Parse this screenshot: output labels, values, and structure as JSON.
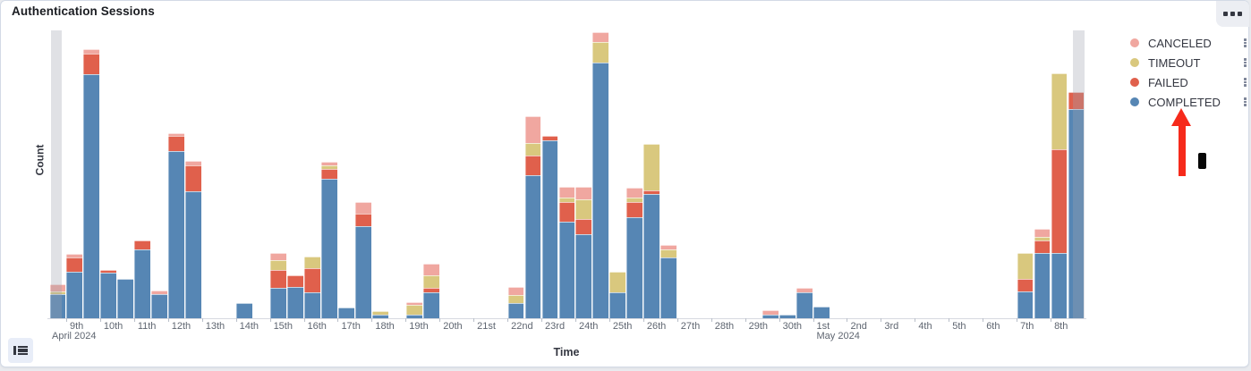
{
  "header": {
    "title": "Authentication Sessions"
  },
  "panel_menu": {
    "icon": "boxes-horizontal-icon"
  },
  "legend_toggle": {
    "icon": "list-icon"
  },
  "axes": {
    "y_title": "Count",
    "x_title": "Time"
  },
  "legend": {
    "position": "right",
    "items": [
      {
        "label": "CANCELED",
        "color": "#f0a7a0"
      },
      {
        "label": "TIMEOUT",
        "color": "#d9c87e"
      },
      {
        "label": "FAILED",
        "color": "#e0604c"
      },
      {
        "label": "COMPLETED",
        "color": "#5686b4"
      }
    ]
  },
  "annotations": {
    "arrow": {
      "shape": "up-arrow",
      "color": "#f62a1b",
      "points_at": "COMPLETED legend item"
    },
    "cursor_mark": {
      "shape": "vertical-bar",
      "color": "#070707"
    }
  },
  "chart_data": {
    "type": "bar",
    "stacked": true,
    "title": "Authentication Sessions",
    "xlabel": "Time",
    "ylabel": "Count",
    "grid": false,
    "legend_position": "right",
    "time_bucket": "12h",
    "x_start": "2024-04-08 12:00",
    "x_end": "2024-05-09 00:00",
    "ylim": [
      0,
      322
    ],
    "y_tick_labels": [],
    "day_tick_labels": [
      "9th",
      "10th",
      "11th",
      "12th",
      "13th",
      "14th",
      "15th",
      "16th",
      "17th",
      "18th",
      "19th",
      "20th",
      "21st",
      "22nd",
      "23rd",
      "24th",
      "25th",
      "26th",
      "27th",
      "28th",
      "29th",
      "30th",
      "1st",
      "2nd",
      "3rd",
      "4th",
      "5th",
      "6th",
      "7th",
      "8th"
    ],
    "month_labels": [
      {
        "text": "April 2024",
        "day_index": 0
      },
      {
        "text": "May 2024",
        "day_index": 22
      }
    ],
    "buckets": [
      "Apr 8 PM",
      "Apr 9 AM",
      "Apr 9 PM",
      "Apr 10 AM",
      "Apr 10 PM",
      "Apr 11 AM",
      "Apr 11 PM",
      "Apr 12 AM",
      "Apr 12 PM",
      "Apr 13 AM",
      "Apr 13 PM",
      "Apr 14 AM",
      "Apr 14 PM",
      "Apr 15 AM",
      "Apr 15 PM",
      "Apr 16 AM",
      "Apr 16 PM",
      "Apr 17 AM",
      "Apr 17 PM",
      "Apr 18 AM",
      "Apr 18 PM",
      "Apr 19 AM",
      "Apr 19 PM",
      "Apr 20 AM",
      "Apr 20 PM",
      "Apr 21 AM",
      "Apr 21 PM",
      "Apr 22 AM",
      "Apr 22 PM",
      "Apr 23 AM",
      "Apr 23 PM",
      "Apr 24 AM",
      "Apr 24 PM",
      "Apr 25 AM",
      "Apr 25 PM",
      "Apr 26 AM",
      "Apr 26 PM",
      "Apr 27 AM",
      "Apr 27 PM",
      "Apr 28 AM",
      "Apr 28 PM",
      "Apr 29 AM",
      "Apr 29 PM",
      "Apr 30 AM",
      "Apr 30 PM",
      "May 1 AM",
      "May 1 PM",
      "May 2 AM",
      "May 2 PM",
      "May 3 AM",
      "May 3 PM",
      "May 4 AM",
      "May 4 PM",
      "May 5 AM",
      "May 5 PM",
      "May 6 AM",
      "May 6 PM",
      "May 7 AM",
      "May 7 PM",
      "May 8 AM",
      "May 8 PM"
    ],
    "stack_order_bottom_to_top": [
      "COMPLETED",
      "FAILED",
      "TIMEOUT",
      "CANCELED"
    ],
    "partial_bucket_indices": [
      0,
      60
    ],
    "series": [
      {
        "name": "COMPLETED",
        "color": "#5686b4",
        "values": [
          27,
          52,
          273,
          51,
          44,
          77,
          27,
          187,
          142,
          0,
          0,
          17,
          0,
          34,
          35,
          29,
          156,
          12,
          103,
          4,
          0,
          4,
          29,
          0,
          0,
          0,
          0,
          17,
          160,
          199,
          108,
          94,
          286,
          29,
          113,
          139,
          68,
          0,
          0,
          0,
          0,
          0,
          4,
          4,
          29,
          13,
          0,
          0,
          0,
          0,
          0,
          0,
          0,
          0,
          0,
          0,
          0,
          30,
          73,
          73,
          234
        ]
      },
      {
        "name": "FAILED",
        "color": "#e0604c",
        "values": [
          0,
          16,
          23,
          3,
          0,
          10,
          0,
          17,
          29,
          0,
          0,
          0,
          0,
          20,
          13,
          27,
          11,
          0,
          14,
          0,
          0,
          0,
          5,
          0,
          0,
          0,
          0,
          0,
          22,
          5,
          22,
          17,
          0,
          0,
          17,
          4,
          0,
          0,
          0,
          0,
          0,
          0,
          0,
          0,
          0,
          0,
          0,
          0,
          0,
          0,
          0,
          0,
          0,
          0,
          0,
          0,
          0,
          14,
          14,
          116,
          19
        ]
      },
      {
        "name": "TIMEOUT",
        "color": "#d9c87e",
        "values": [
          3,
          0,
          0,
          0,
          0,
          0,
          0,
          0,
          0,
          0,
          0,
          0,
          0,
          11,
          0,
          13,
          4,
          0,
          0,
          4,
          0,
          11,
          14,
          0,
          0,
          0,
          0,
          9,
          14,
          0,
          5,
          22,
          23,
          23,
          5,
          52,
          9,
          0,
          0,
          0,
          0,
          0,
          0,
          0,
          0,
          0,
          0,
          0,
          0,
          0,
          0,
          0,
          0,
          0,
          0,
          0,
          0,
          29,
          4,
          85,
          0
        ]
      },
      {
        "name": "CANCELED",
        "color": "#f0a7a0",
        "values": [
          8,
          4,
          5,
          0,
          0,
          0,
          4,
          3,
          5,
          0,
          0,
          0,
          0,
          8,
          0,
          0,
          4,
          0,
          13,
          0,
          0,
          3,
          13,
          0,
          0,
          0,
          0,
          9,
          30,
          0,
          12,
          14,
          11,
          0,
          11,
          0,
          5,
          0,
          0,
          0,
          0,
          0,
          5,
          0,
          5,
          0,
          0,
          0,
          0,
          0,
          0,
          0,
          0,
          0,
          0,
          0,
          0,
          0,
          9,
          0,
          0
        ]
      }
    ]
  }
}
